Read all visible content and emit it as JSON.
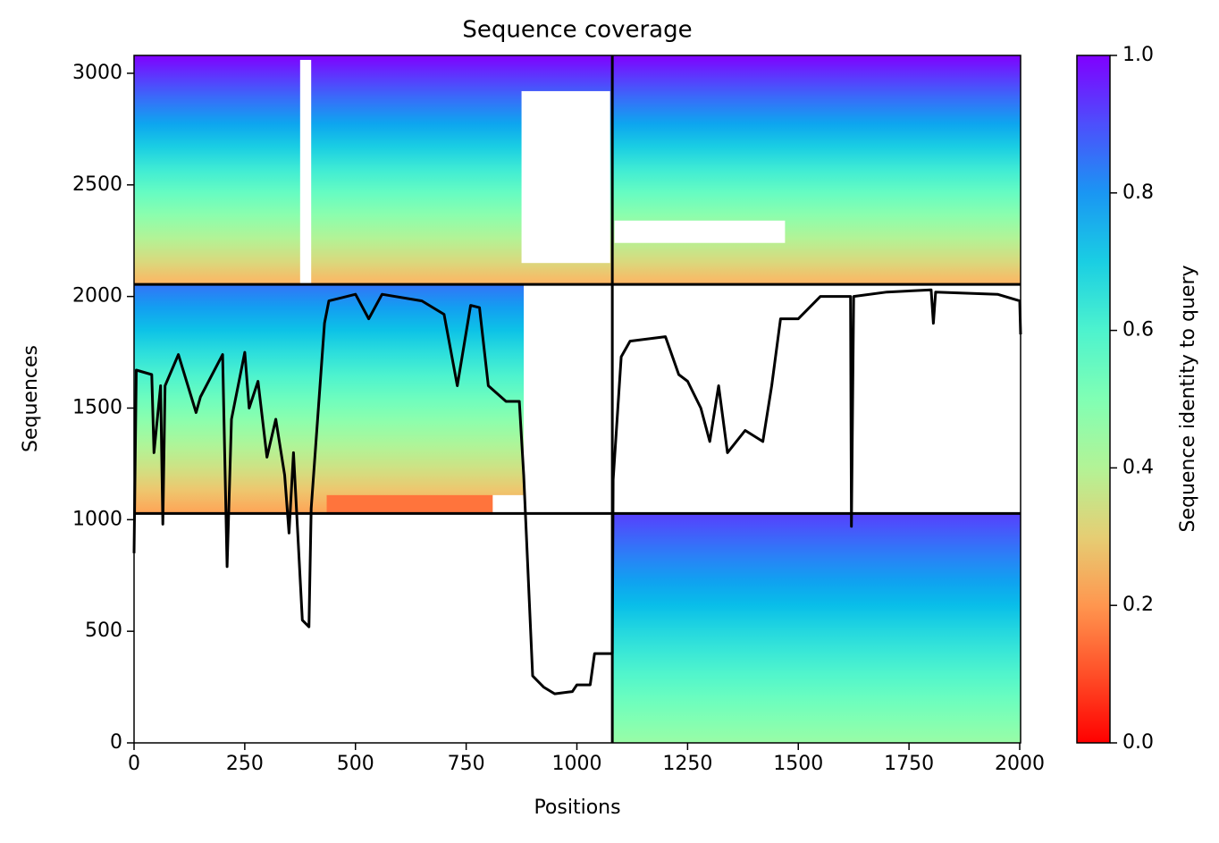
{
  "chart_data": {
    "type": "coverage",
    "title": "Sequence coverage",
    "xlabel": "Positions",
    "ylabel": "Sequences",
    "colorbar_label": "Sequence identity to query",
    "colormap": "rainbow_r",
    "clim": [
      0,
      1
    ],
    "cticks": [
      {
        "value": 0,
        "label": "0.0"
      },
      0.2,
      0.4,
      0.6,
      0.8,
      {
        "value": 1,
        "label": "1.0"
      }
    ],
    "xlim": [
      0,
      2002
    ],
    "ylim": [
      0,
      3080
    ],
    "xticks": [
      0,
      250,
      500,
      750,
      1000,
      1250,
      1500,
      1750,
      2000
    ],
    "yticks": [
      0,
      500,
      1000,
      1500,
      2000,
      2500,
      3000
    ],
    "blocks": [
      {
        "x": [
          0,
          2002
        ],
        "y": [
          2054,
          3080
        ],
        "identity": [
          0.25,
          1.0
        ]
      },
      {
        "x": [
          0,
          880
        ],
        "y": [
          1028,
          2054
        ],
        "identity": [
          0.22,
          0.85
        ]
      },
      {
        "x": [
          435,
          810
        ],
        "y": [
          1028,
          1110
        ],
        "identity": [
          0.15,
          0.15
        ]
      },
      {
        "x": [
          1080,
          2002
        ],
        "y": [
          0,
          1028
        ],
        "identity": [
          0.45,
          0.92
        ]
      }
    ],
    "gaps": [
      {
        "x": [
          875,
          1075
        ],
        "y": [
          2150,
          2920
        ]
      },
      {
        "x": [
          375,
          400
        ],
        "y": [
          2054,
          3060
        ]
      },
      {
        "x": [
          1085,
          1470
        ],
        "y": [
          2240,
          2340
        ]
      },
      {
        "x": [
          810,
          880
        ],
        "y": [
          1028,
          1110
        ]
      }
    ],
    "boundaries": {
      "x": [
        1080
      ],
      "y": [
        1028,
        2054
      ]
    },
    "coverage": {
      "x": [
        0,
        5,
        40,
        45,
        60,
        65,
        70,
        100,
        140,
        150,
        200,
        210,
        220,
        250,
        260,
        280,
        300,
        320,
        340,
        350,
        360,
        380,
        395,
        400,
        430,
        440,
        500,
        530,
        560,
        650,
        700,
        730,
        760,
        780,
        800,
        840,
        870,
        880,
        900,
        925,
        950,
        990,
        1000,
        1030,
        1040,
        1080,
        1082,
        1100,
        1120,
        1200,
        1230,
        1250,
        1280,
        1300,
        1320,
        1340,
        1380,
        1420,
        1440,
        1460,
        1500,
        1550,
        1600,
        1618,
        1620,
        1625,
        1700,
        1800,
        1805,
        1810,
        1950,
        2000,
        2002
      ],
      "y": [
        850,
        1670,
        1650,
        1300,
        1600,
        980,
        1600,
        1740,
        1480,
        1550,
        1740,
        790,
        1450,
        1750,
        1500,
        1620,
        1280,
        1450,
        1200,
        940,
        1300,
        550,
        520,
        1050,
        1880,
        1980,
        2010,
        1900,
        2010,
        1980,
        1920,
        1600,
        1960,
        1950,
        1600,
        1530,
        1530,
        1200,
        300,
        250,
        220,
        230,
        260,
        260,
        400,
        400,
        1180,
        1730,
        1800,
        1820,
        1650,
        1620,
        1500,
        1350,
        1600,
        1300,
        1400,
        1350,
        1600,
        1900,
        1900,
        2000,
        2000,
        2000,
        970,
        2000,
        2020,
        2030,
        1880,
        2020,
        2010,
        1980,
        1830
      ]
    }
  }
}
